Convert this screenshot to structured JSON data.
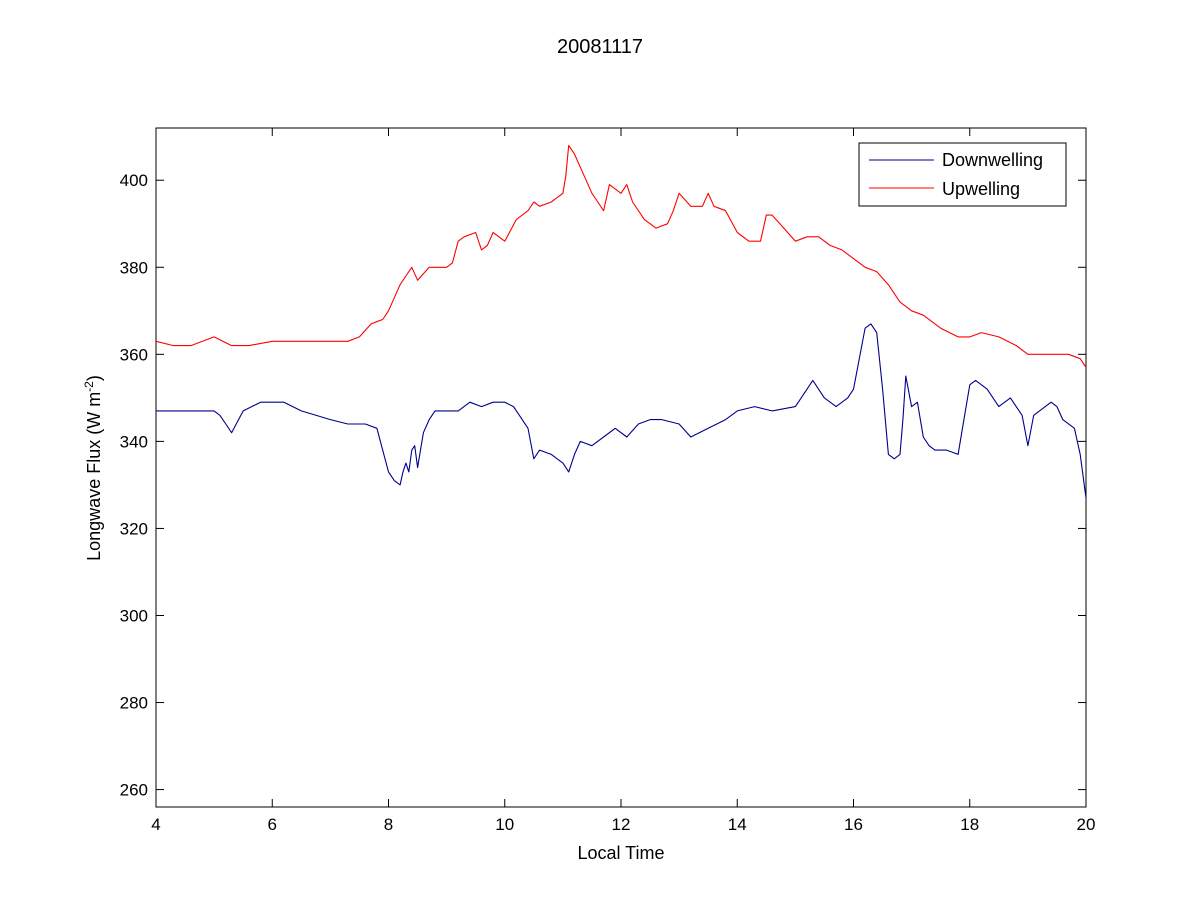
{
  "chart_data": {
    "type": "line",
    "title": "20081117",
    "xlabel": "Local Time",
    "ylabel": "Longwave Flux (W m-2)",
    "ylabel_parts": {
      "main": "Longwave Flux (W m",
      "sup": "-2",
      "close": ")"
    },
    "xlim": [
      4,
      20
    ],
    "ylim": [
      256,
      412
    ],
    "xticks": [
      4,
      6,
      8,
      10,
      12,
      14,
      16,
      18,
      20
    ],
    "yticks": [
      260,
      280,
      300,
      320,
      340,
      360,
      380,
      400
    ],
    "legend_position": "top-right",
    "grid": false,
    "series": [
      {
        "name": "Downwelling",
        "color": "#00008b",
        "x": [
          4.0,
          4.5,
          5.0,
          5.1,
          5.2,
          5.3,
          5.5,
          5.8,
          6.0,
          6.2,
          6.5,
          7.0,
          7.3,
          7.6,
          7.8,
          7.9,
          8.0,
          8.1,
          8.2,
          8.25,
          8.3,
          8.35,
          8.4,
          8.45,
          8.5,
          8.6,
          8.7,
          8.8,
          9.0,
          9.2,
          9.4,
          9.6,
          9.8,
          10.0,
          10.15,
          10.3,
          10.4,
          10.5,
          10.6,
          10.8,
          10.9,
          11.0,
          11.1,
          11.2,
          11.3,
          11.5,
          11.7,
          11.9,
          12.1,
          12.3,
          12.5,
          12.7,
          13.0,
          13.2,
          13.5,
          13.8,
          14.0,
          14.3,
          14.6,
          15.0,
          15.2,
          15.3,
          15.5,
          15.7,
          15.9,
          16.0,
          16.1,
          16.2,
          16.3,
          16.4,
          16.5,
          16.6,
          16.7,
          16.8,
          16.85,
          16.9,
          17.0,
          17.1,
          17.2,
          17.3,
          17.4,
          17.6,
          17.8,
          17.9,
          18.0,
          18.1,
          18.3,
          18.5,
          18.7,
          18.9,
          19.0,
          19.1,
          19.2,
          19.4,
          19.5,
          19.6,
          19.8,
          19.9,
          20.0
        ],
        "y": [
          347,
          347,
          347,
          346,
          344,
          342,
          347,
          349,
          349,
          349,
          347,
          345,
          344,
          344,
          343,
          338,
          333,
          331,
          330,
          333,
          335,
          333,
          338,
          339,
          334,
          342,
          345,
          347,
          347,
          347,
          349,
          348,
          349,
          349,
          348,
          345,
          343,
          336,
          338,
          337,
          336,
          335,
          333,
          337,
          340,
          339,
          341,
          343,
          341,
          344,
          345,
          345,
          344,
          341,
          343,
          345,
          347,
          348,
          347,
          348,
          352,
          354,
          350,
          348,
          350,
          352,
          359,
          366,
          367,
          365,
          352,
          337,
          336,
          337,
          345,
          355,
          348,
          349,
          341,
          339,
          338,
          338,
          337,
          345,
          353,
          354,
          352,
          348,
          350,
          346,
          339,
          346,
          347,
          349,
          348,
          345,
          343,
          337,
          327
        ]
      },
      {
        "name": "Upwelling",
        "color": "#ff0000",
        "x": [
          4.0,
          4.3,
          4.6,
          5.0,
          5.3,
          5.6,
          6.0,
          6.3,
          6.6,
          7.0,
          7.3,
          7.5,
          7.7,
          7.9,
          8.0,
          8.1,
          8.2,
          8.3,
          8.4,
          8.5,
          8.7,
          8.9,
          9.0,
          9.1,
          9.2,
          9.3,
          9.5,
          9.6,
          9.7,
          9.8,
          10.0,
          10.2,
          10.4,
          10.5,
          10.6,
          10.8,
          10.9,
          11.0,
          11.05,
          11.1,
          11.2,
          11.3,
          11.4,
          11.5,
          11.6,
          11.7,
          11.8,
          11.9,
          12.0,
          12.1,
          12.2,
          12.4,
          12.6,
          12.8,
          12.9,
          13.0,
          13.2,
          13.4,
          13.5,
          13.6,
          13.8,
          14.0,
          14.2,
          14.4,
          14.5,
          14.6,
          14.8,
          15.0,
          15.2,
          15.4,
          15.6,
          15.8,
          16.0,
          16.2,
          16.4,
          16.6,
          16.8,
          17.0,
          17.2,
          17.5,
          17.8,
          18.0,
          18.2,
          18.5,
          18.8,
          19.0,
          19.2,
          19.5,
          19.7,
          19.9,
          20.0
        ],
        "y": [
          363,
          362,
          362,
          364,
          362,
          362,
          363,
          363,
          363,
          363,
          363,
          364,
          367,
          368,
          370,
          373,
          376,
          378,
          380,
          377,
          380,
          380,
          380,
          381,
          386,
          387,
          388,
          384,
          385,
          388,
          386,
          391,
          393,
          395,
          394,
          395,
          396,
          397,
          401,
          408,
          406,
          403,
          400,
          397,
          395,
          393,
          399,
          398,
          397,
          399,
          395,
          391,
          389,
          390,
          393,
          397,
          394,
          394,
          397,
          394,
          393,
          388,
          386,
          386,
          392,
          392,
          389,
          386,
          387,
          387,
          385,
          384,
          382,
          380,
          379,
          376,
          372,
          370,
          369,
          366,
          364,
          364,
          365,
          364,
          362,
          360,
          360,
          360,
          360,
          359,
          357
        ]
      }
    ]
  }
}
